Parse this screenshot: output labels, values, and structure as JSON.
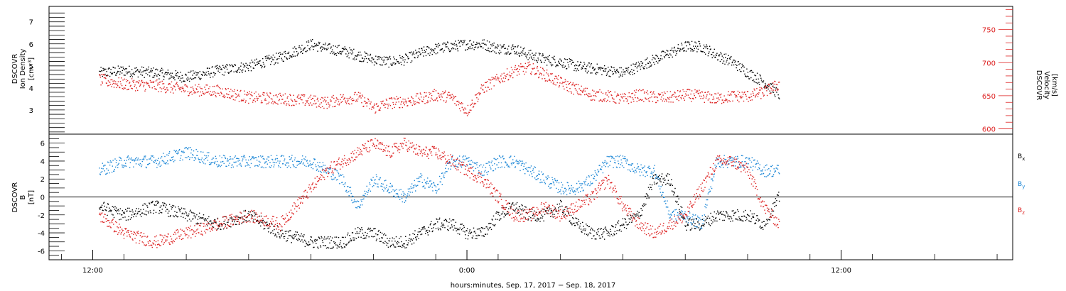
{
  "chart_data": [
    {
      "type": "scatter",
      "panel": "top",
      "left_axis_label": [
        "DSCOVR",
        "Ion Density",
        "[cm⁻³]"
      ],
      "right_axis_label": [
        "DSCOVR",
        "Velocity",
        "[km/s]"
      ],
      "left_ticks": [
        "3",
        "4",
        "5",
        "6",
        "7"
      ],
      "right_ticks": [
        "600",
        "650",
        "700",
        "750"
      ],
      "ylim_left": [
        1.9,
        7.7
      ],
      "ylim_right": [
        592,
        785
      ],
      "series": [
        {
          "axis": "left",
          "color": "#000000",
          "x": [
            -11.8,
            -11.0,
            -10.0,
            -9.0,
            -8.0,
            -7.0,
            -6.0,
            -5.0,
            -4.5,
            -4.0,
            -3.5,
            -3.0,
            -2.5,
            -2.0,
            -1.5,
            -1.0,
            -0.5,
            0.0,
            0.5,
            1.0,
            1.5,
            2.0,
            2.5,
            3.0,
            3.5,
            4.0,
            4.5,
            5.0,
            5.5,
            6.0,
            6.5,
            7.0,
            7.5,
            8.0,
            8.5,
            9.0,
            9.5,
            10.0
          ],
          "values": [
            4.7,
            4.8,
            4.7,
            4.5,
            4.8,
            5.0,
            5.4,
            6.0,
            5.8,
            5.7,
            5.5,
            5.3,
            5.2,
            5.3,
            5.6,
            5.8,
            5.9,
            6.0,
            6.0,
            5.8,
            5.8,
            5.5,
            5.3,
            5.2,
            5.0,
            4.9,
            4.8,
            4.7,
            5.0,
            5.3,
            5.6,
            5.9,
            5.9,
            5.5,
            5.2,
            4.7,
            4.3,
            3.7
          ]
        },
        {
          "axis": "right",
          "color": "#dd2020",
          "x": [
            -11.8,
            -11.0,
            -10.0,
            -9.0,
            -8.0,
            -7.0,
            -6.0,
            -5.0,
            -4.5,
            -4.0,
            -3.5,
            -3.0,
            -2.5,
            -2.0,
            -1.5,
            -1.0,
            -0.5,
            0.0,
            0.5,
            1.0,
            1.5,
            2.0,
            2.5,
            3.0,
            3.5,
            4.0,
            4.5,
            5.0,
            5.5,
            6.0,
            6.5,
            7.0,
            7.5,
            8.0,
            8.5,
            9.0,
            9.5,
            10.0
          ],
          "values": [
            675,
            668,
            666,
            660,
            658,
            648,
            646,
            643,
            640,
            646,
            648,
            632,
            640,
            642,
            646,
            652,
            648,
            628,
            662,
            676,
            688,
            693,
            682,
            670,
            660,
            652,
            650,
            645,
            652,
            648,
            648,
            652,
            650,
            646,
            650,
            650,
            656,
            668
          ]
        }
      ]
    },
    {
      "type": "scatter",
      "panel": "bottom",
      "left_axis_label": [
        "DSCOVR",
        "B",
        "[nT]"
      ],
      "left_ticks": [
        "-6",
        "-4",
        "-2",
        "0",
        "2",
        "4",
        "6"
      ],
      "ylim": [
        -7,
        7
      ],
      "legend": [
        "B",
        "B",
        "B"
      ],
      "legend_subscripts": [
        "x",
        "y",
        "z"
      ],
      "legend_colors": [
        "#000000",
        "#1a86d6",
        "#dd2020"
      ],
      "series": [
        {
          "color": "#000000",
          "x": [
            -11.8,
            -11.0,
            -10.0,
            -9.0,
            -8.0,
            -7.0,
            -6.0,
            -5.0,
            -4.5,
            -4.0,
            -3.5,
            -3.0,
            -2.5,
            -2.0,
            -1.5,
            -1.0,
            -0.5,
            0.0,
            0.5,
            1.0,
            1.5,
            2.0,
            2.5,
            3.0,
            3.5,
            4.0,
            4.5,
            5.0,
            5.5,
            6.0,
            6.5,
            7.0,
            7.5,
            8.0,
            8.5,
            9.0,
            9.5,
            10.0
          ],
          "values": [
            -1,
            -2,
            -1,
            -2,
            -3,
            -2,
            -4,
            -5,
            -5,
            -5,
            -4,
            -4,
            -5,
            -5,
            -4,
            -3,
            -3,
            -4,
            -4,
            -2,
            -1,
            -2,
            -2,
            -1,
            -3,
            -4,
            -4,
            -3,
            -2,
            2,
            2,
            -3,
            -3,
            -2,
            -2,
            -2,
            -3,
            0
          ]
        },
        {
          "color": "#1a86d6",
          "x": [
            -11.8,
            -11.0,
            -10.0,
            -9.0,
            -8.0,
            -7.0,
            -6.0,
            -5.0,
            -4.5,
            -4.0,
            -3.5,
            -3.0,
            -2.5,
            -2.0,
            -1.5,
            -1.0,
            -0.5,
            0.0,
            0.5,
            1.0,
            1.5,
            2.0,
            2.5,
            3.0,
            3.5,
            4.0,
            4.5,
            5.0,
            5.5,
            6.0,
            6.5,
            7.0,
            7.5,
            8.0,
            8.5,
            9.0,
            9.5,
            10.0
          ],
          "values": [
            3,
            4,
            4,
            5,
            4,
            4,
            4,
            4,
            3,
            2,
            -1,
            2,
            1,
            0,
            2,
            1,
            4,
            4,
            3,
            4,
            4,
            3,
            2,
            1,
            1,
            2,
            4,
            4,
            3,
            3,
            -2,
            -2,
            -3,
            4,
            4,
            4,
            3,
            3
          ]
        },
        {
          "color": "#dd2020",
          "x": [
            -11.8,
            -11.0,
            -10.0,
            -9.0,
            -8.0,
            -7.0,
            -6.0,
            -5.0,
            -4.5,
            -4.0,
            -3.5,
            -3.0,
            -2.5,
            -2.0,
            -1.5,
            -1.0,
            -0.5,
            0.0,
            0.5,
            1.0,
            1.5,
            2.0,
            2.5,
            3.0,
            3.5,
            4.0,
            4.5,
            5.0,
            5.5,
            6.0,
            6.5,
            7.0,
            7.5,
            8.0,
            8.5,
            9.0,
            9.5,
            10.0
          ],
          "values": [
            -2,
            -4,
            -5,
            -4,
            -3,
            -2,
            -3,
            1,
            3,
            4,
            5,
            6,
            5,
            6,
            5,
            5,
            4,
            3,
            2,
            0,
            -2,
            -2,
            -1,
            -2,
            -1,
            0,
            2,
            -1,
            -3,
            -4,
            -3,
            -2,
            1,
            4,
            4,
            3,
            -1,
            -3
          ]
        }
      ]
    }
  ],
  "x_axis": {
    "ticks": [
      "12:00",
      "0:00",
      "12:00"
    ],
    "xlim": [
      -13.4,
      17.5
    ],
    "title": "hours:minutes, Sep. 17, 2017 − Sep. 18, 2017"
  }
}
